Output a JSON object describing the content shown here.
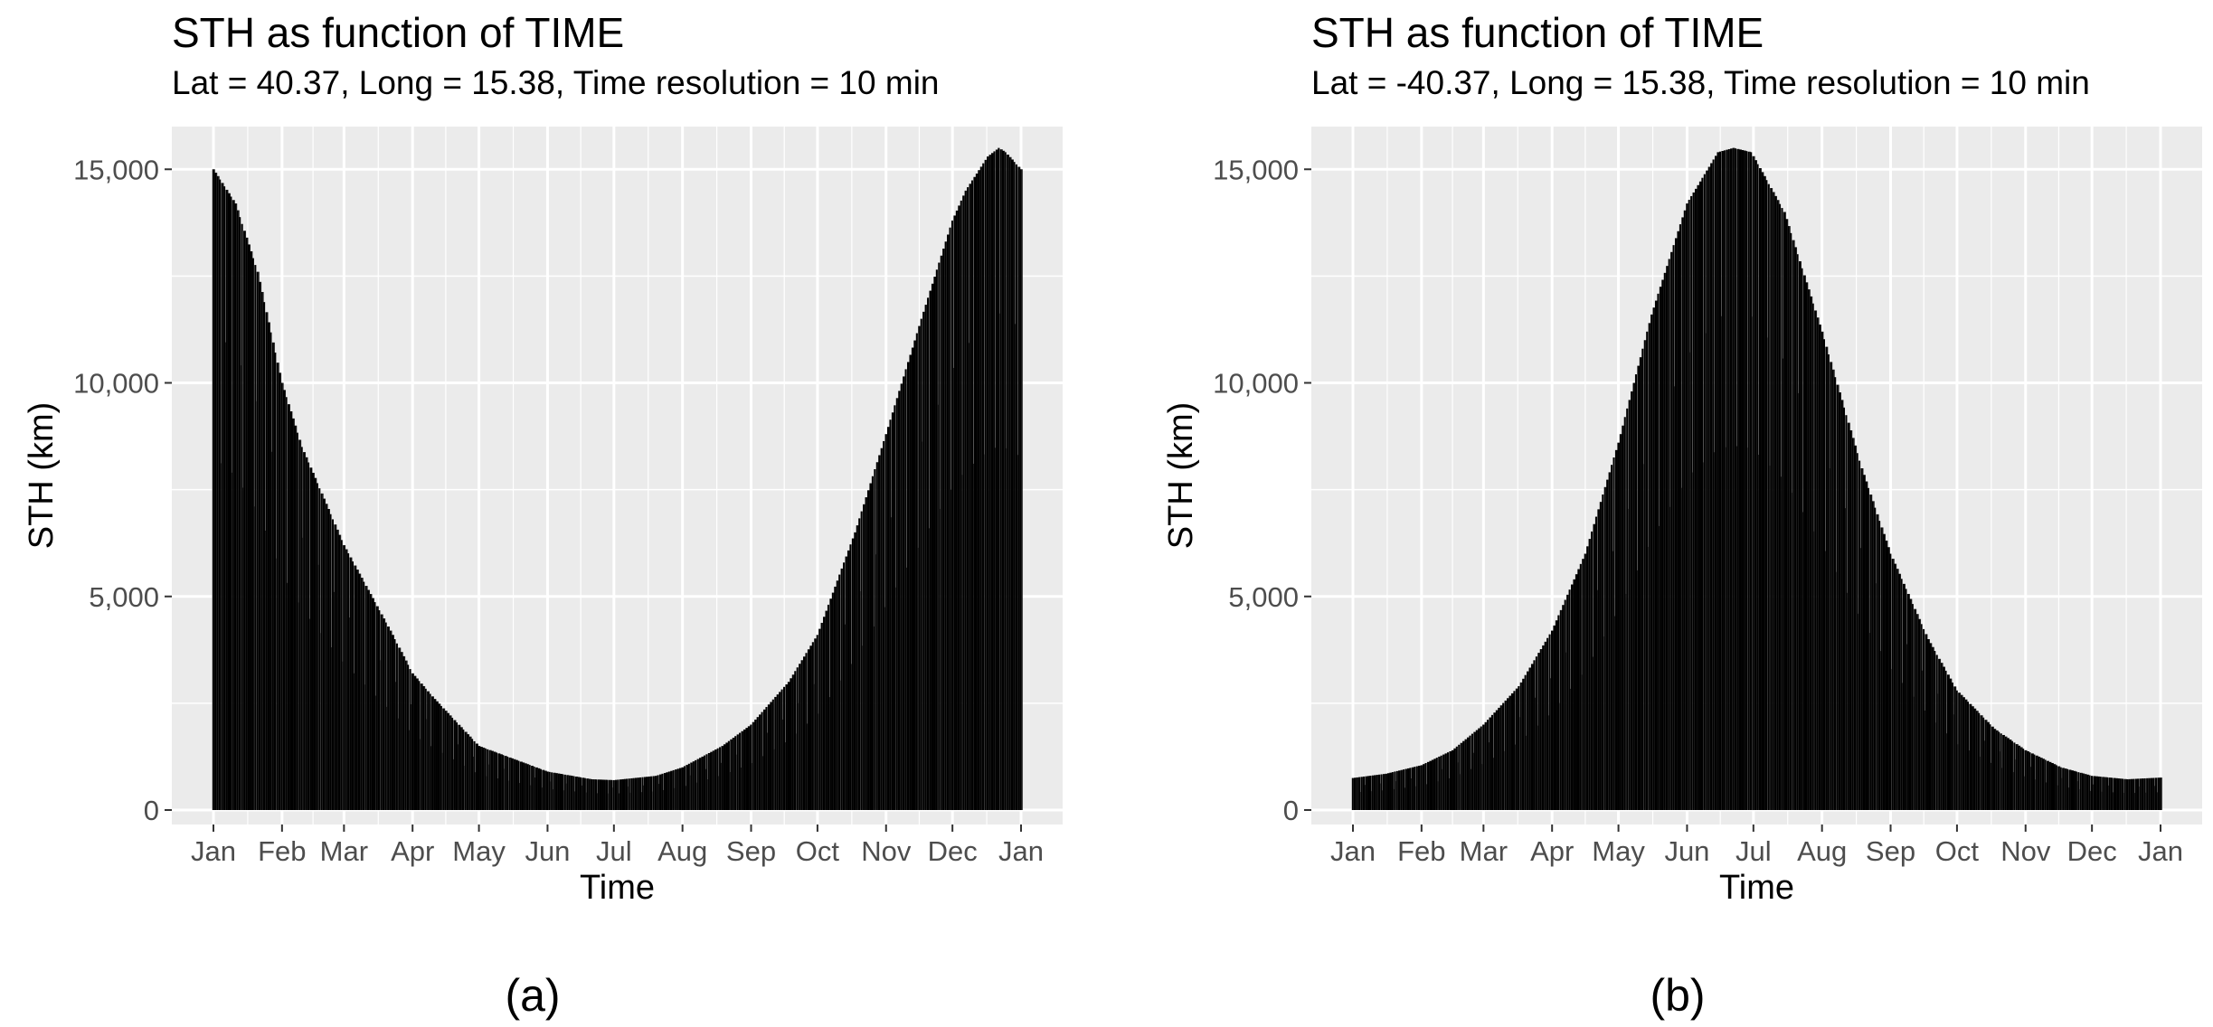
{
  "chart_data": [
    {
      "type": "bar",
      "title": "STH as function of TIME",
      "subtitle": "Lat = 40.37, Long = 15.38, Time resolution = 10 min",
      "xlabel": "Time",
      "ylabel": "STH (km)",
      "x_tick_labels": [
        "Jan",
        "Feb",
        "Mar",
        "Apr",
        "May",
        "Jun",
        "Jul",
        "Aug",
        "Sep",
        "Oct",
        "Nov",
        "Dec",
        "Jan"
      ],
      "y_tick_labels": [
        "0",
        "5,000",
        "10,000",
        "15,000"
      ],
      "y_ticks": [
        0,
        5000,
        10000,
        15000
      ],
      "ylim": [
        0,
        16000
      ],
      "grid": true,
      "bar_color": "#000000",
      "panel_background": "#ebebeb",
      "daily_peak_envelope": {
        "day_of_year": [
          0,
          10,
          20,
          31,
          40,
          59,
          80,
          90,
          100,
          120,
          151,
          171,
          181,
          200,
          212,
          230,
          243,
          260,
          273,
          290,
          304,
          320,
          334,
          340,
          350,
          355,
          358,
          365
        ],
        "sth_km": [
          15000,
          14200,
          12600,
          10000,
          8500,
          6200,
          4200,
          3200,
          2600,
          1500,
          900,
          720,
          700,
          800,
          1000,
          1500,
          2000,
          3000,
          4100,
          6500,
          8800,
          11500,
          13800,
          14500,
          15300,
          15500,
          15400,
          15000
        ]
      }
    },
    {
      "type": "bar",
      "title": "STH as function of TIME",
      "subtitle": "Lat = -40.37, Long = 15.38, Time resolution = 10 min",
      "xlabel": "Time",
      "ylabel": "STH (km)",
      "x_tick_labels": [
        "Jan",
        "Feb",
        "Mar",
        "Apr",
        "May",
        "Jun",
        "Jul",
        "Aug",
        "Sep",
        "Oct",
        "Nov",
        "Dec",
        "Jan"
      ],
      "y_tick_labels": [
        "0",
        "5,000",
        "10,000",
        "15,000"
      ],
      "y_ticks": [
        0,
        5000,
        10000,
        15000
      ],
      "ylim": [
        0,
        16000
      ],
      "grid": true,
      "bar_color": "#000000",
      "panel_background": "#ebebeb",
      "daily_peak_envelope": {
        "day_of_year": [
          0,
          15,
          31,
          45,
          59,
          75,
          90,
          105,
          120,
          135,
          151,
          165,
          172,
          180,
          195,
          212,
          230,
          243,
          260,
          273,
          290,
          304,
          320,
          334,
          350,
          365
        ],
        "sth_km": [
          750,
          850,
          1050,
          1400,
          2000,
          2900,
          4200,
          6000,
          8600,
          11600,
          14200,
          15400,
          15500,
          15400,
          14000,
          11200,
          8000,
          6000,
          4000,
          2800,
          1900,
          1400,
          1000,
          800,
          720,
          760
        ]
      }
    }
  ],
  "captions": [
    "(a)",
    "(b)"
  ]
}
